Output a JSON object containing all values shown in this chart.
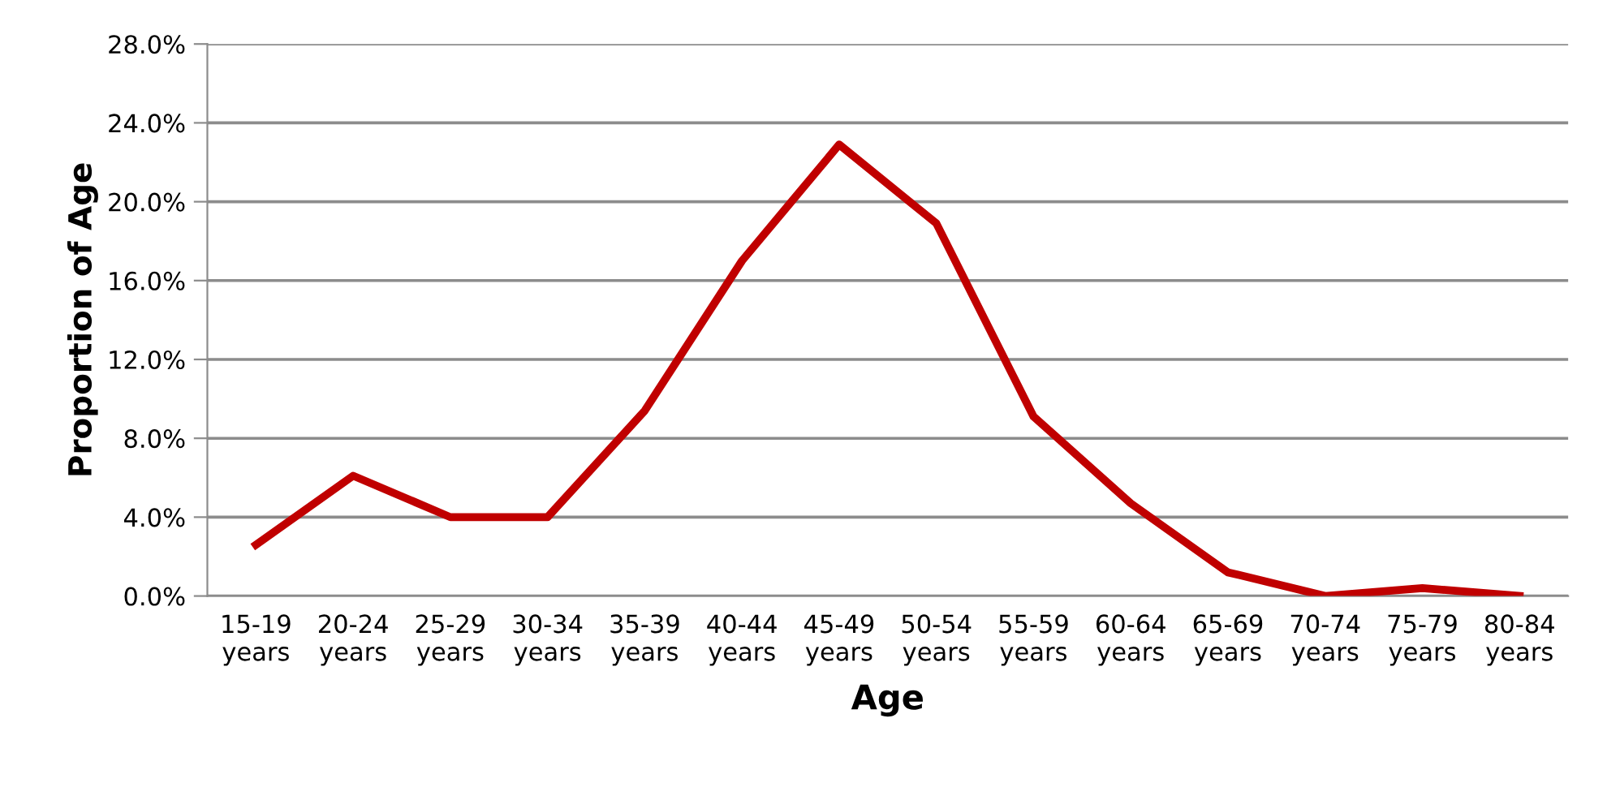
{
  "chart_data": {
    "type": "line",
    "xlabel": "Age",
    "ylabel": "Proportion of Age",
    "categories": [
      "15-19 years",
      "20-24 years",
      "25-29 years",
      "30-34 years",
      "35-39 years",
      "40-44 years",
      "45-49 years",
      "50-54 years",
      "55-59 years",
      "60-64 years",
      "65-69 years",
      "70-74 years",
      "75-79 years",
      "80-84 years"
    ],
    "series": [
      {
        "color": "#c00000",
        "values": [
          2.6,
          6.1,
          4.0,
          4.0,
          9.4,
          17.0,
          22.9,
          18.9,
          9.1,
          4.7,
          1.2,
          0.0,
          0.4,
          0.0
        ]
      }
    ],
    "ylim": [
      0,
      28
    ],
    "yticks": [
      {
        "value": 0,
        "label": "0.0%"
      },
      {
        "value": 4,
        "label": "4.0%"
      },
      {
        "value": 8,
        "label": "8.0%"
      },
      {
        "value": 12,
        "label": "12.0%"
      },
      {
        "value": 16,
        "label": "16.0%"
      },
      {
        "value": 20,
        "label": "20.0%"
      },
      {
        "value": 24,
        "label": "24.0%"
      },
      {
        "value": 28,
        "label": "28.0%"
      }
    ],
    "grid": "y",
    "marker": "none",
    "line_style": "solid"
  }
}
